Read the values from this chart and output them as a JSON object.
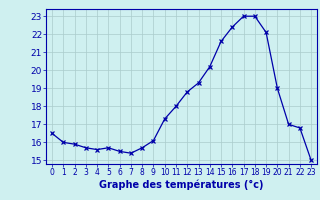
{
  "hours": [
    0,
    1,
    2,
    3,
    4,
    5,
    6,
    7,
    8,
    9,
    10,
    11,
    12,
    13,
    14,
    15,
    16,
    17,
    18,
    19,
    20,
    21,
    22,
    23
  ],
  "temperatures": [
    16.5,
    16.0,
    15.9,
    15.7,
    15.6,
    15.7,
    15.5,
    15.4,
    15.7,
    16.1,
    17.3,
    18.0,
    18.8,
    19.3,
    20.2,
    21.6,
    22.4,
    23.0,
    23.0,
    22.1,
    19.0,
    17.0,
    16.8,
    15.0
  ],
  "line_color": "#0000aa",
  "marker": "x",
  "bg_color": "#cff0f0",
  "grid_color": "#aacccc",
  "xlabel": "Graphe des températures (°c)",
  "ylim": [
    14.8,
    23.4
  ],
  "yticks": [
    15,
    16,
    17,
    18,
    19,
    20,
    21,
    22,
    23
  ],
  "xlim": [
    -0.5,
    23.5
  ],
  "xticks": [
    0,
    1,
    2,
    3,
    4,
    5,
    6,
    7,
    8,
    9,
    10,
    11,
    12,
    13,
    14,
    15,
    16,
    17,
    18,
    19,
    20,
    21,
    22,
    23
  ],
  "tick_color": "#0000aa",
  "tick_label_color": "#0000aa",
  "axis_label_color": "#0000aa",
  "border_color": "#0000aa",
  "fig_width": 3.2,
  "fig_height": 2.0,
  "dpi": 100
}
